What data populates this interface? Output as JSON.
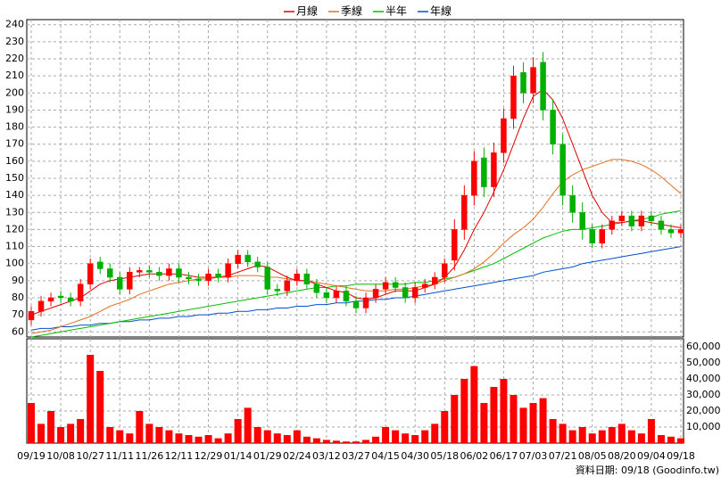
{
  "chart_data": {
    "type": "candlestick",
    "legend": [
      {
        "name": "月線",
        "color": "#e00000",
        "key": "ma20"
      },
      {
        "name": "季線",
        "color": "#e07020",
        "key": "ma60"
      },
      {
        "name": "半年",
        "color": "#00c000",
        "key": "ma120"
      },
      {
        "name": "年線",
        "color": "#0050d0",
        "key": "ma240"
      }
    ],
    "source": "資料日期: 09/18 (Goodinfo.tw)",
    "categories": [
      "09/19",
      null,
      null,
      "10/08",
      null,
      null,
      "10/27",
      null,
      null,
      "11/11",
      null,
      null,
      "11/26",
      null,
      null,
      "12/11",
      null,
      null,
      "12/29",
      null,
      null,
      "01/14",
      null,
      null,
      "01/29",
      null,
      null,
      "02/24",
      null,
      null,
      "03/12",
      null,
      null,
      "03/27",
      null,
      null,
      "04/15",
      null,
      null,
      "04/30",
      null,
      null,
      "05/18",
      null,
      null,
      "06/02",
      null,
      null,
      "06/17",
      null,
      null,
      "07/03",
      null,
      null,
      "07/21",
      null,
      null,
      "08/05",
      null,
      null,
      "08/20",
      null,
      null,
      "09/04",
      null,
      null,
      "09/18"
    ],
    "open": [
      67,
      72,
      78,
      81,
      80,
      78,
      88,
      101,
      97,
      92,
      85,
      95,
      96,
      95,
      93,
      97,
      92,
      91,
      90,
      94,
      92,
      100,
      105,
      101,
      98,
      85,
      84,
      90,
      94,
      88,
      83,
      80,
      84,
      78,
      74,
      80,
      85,
      89,
      86,
      80,
      86,
      88,
      92,
      102,
      120,
      140,
      162,
      145,
      165,
      185,
      212,
      200,
      218,
      190,
      170,
      140,
      130,
      120,
      112,
      120,
      125,
      128,
      122,
      128,
      125,
      120,
      118
    ],
    "high": [
      75,
      81,
      83,
      84,
      83,
      91,
      103,
      104,
      100,
      95,
      98,
      98,
      99,
      98,
      100,
      100,
      95,
      94,
      97,
      97,
      103,
      108,
      108,
      104,
      101,
      88,
      93,
      97,
      97,
      91,
      86,
      87,
      87,
      81,
      83,
      88,
      92,
      92,
      89,
      89,
      91,
      95,
      103,
      126,
      146,
      166,
      168,
      171,
      191,
      216,
      218,
      221,
      224,
      196,
      176,
      146,
      136,
      123,
      123,
      128,
      131,
      131,
      131,
      131,
      128,
      123,
      123
    ],
    "low": [
      64,
      69,
      75,
      77,
      75,
      75,
      85,
      94,
      89,
      82,
      82,
      92,
      92,
      90,
      90,
      89,
      88,
      87,
      87,
      89,
      89,
      97,
      98,
      95,
      82,
      81,
      81,
      87,
      85,
      80,
      77,
      77,
      75,
      71,
      71,
      77,
      82,
      83,
      77,
      77,
      83,
      85,
      89,
      96,
      114,
      134,
      139,
      139,
      159,
      179,
      194,
      194,
      184,
      164,
      134,
      124,
      114,
      109,
      109,
      117,
      122,
      119,
      119,
      122,
      117,
      115,
      115
    ],
    "close": [
      72,
      78,
      80,
      80,
      78,
      88,
      100,
      97,
      92,
      85,
      95,
      96,
      95,
      93,
      97,
      92,
      91,
      90,
      94,
      92,
      100,
      105,
      101,
      98,
      85,
      84,
      90,
      94,
      88,
      83,
      80,
      84,
      78,
      74,
      80,
      85,
      89,
      86,
      80,
      86,
      88,
      92,
      100,
      120,
      140,
      160,
      145,
      165,
      185,
      210,
      200,
      215,
      190,
      170,
      140,
      130,
      120,
      112,
      120,
      125,
      128,
      122,
      128,
      125,
      120,
      118,
      120
    ],
    "up_color": "#ff0000",
    "down_color": "#00b000",
    "volume": [
      25000,
      12000,
      20000,
      10000,
      12000,
      15000,
      55000,
      45000,
      10000,
      8000,
      6000,
      20000,
      12000,
      10000,
      8000,
      6000,
      5000,
      4000,
      5000,
      3000,
      6000,
      15000,
      22000,
      10000,
      8000,
      6000,
      5000,
      8000,
      4000,
      3000,
      2000,
      1500,
      1000,
      1000,
      2000,
      4000,
      10000,
      8000,
      6000,
      5000,
      8000,
      12000,
      20000,
      30000,
      40000,
      48000,
      25000,
      35000,
      40000,
      30000,
      22000,
      25000,
      28000,
      15000,
      12000,
      8000,
      10000,
      6000,
      8000,
      10000,
      12000,
      8000,
      6000,
      15000,
      5000,
      4000,
      3000
    ],
    "volume_color": "#ff0000",
    "ma20": [
      70,
      72,
      74,
      76,
      78,
      80,
      84,
      88,
      90,
      91,
      92,
      93,
      94,
      94,
      94,
      94,
      93,
      92,
      92,
      92,
      93,
      95,
      97,
      99,
      98,
      95,
      92,
      90,
      90,
      88,
      86,
      84,
      83,
      80,
      79,
      80,
      82,
      84,
      84,
      84,
      86,
      88,
      92,
      98,
      108,
      120,
      130,
      142,
      155,
      170,
      185,
      198,
      202,
      196,
      185,
      170,
      155,
      140,
      130,
      124,
      124,
      125,
      125,
      124,
      123,
      122,
      121
    ],
    "ma60": [
      59,
      60,
      61,
      63,
      65,
      67,
      69,
      72,
      75,
      77,
      79,
      82,
      84,
      86,
      88,
      89,
      90,
      91,
      91,
      92,
      92,
      93,
      93,
      93,
      92,
      92,
      91,
      90,
      90,
      89,
      88,
      87,
      86,
      85,
      84,
      84,
      84,
      85,
      85,
      86,
      87,
      88,
      90,
      92,
      94,
      97,
      101,
      106,
      112,
      117,
      121,
      126,
      133,
      141,
      148,
      152,
      155,
      157,
      159,
      161,
      161,
      160,
      158,
      155,
      151,
      146,
      141
    ],
    "ma120": [
      57,
      58,
      59,
      60,
      61,
      62,
      63,
      64,
      65,
      66,
      67,
      68,
      69,
      70,
      71,
      72,
      73,
      74,
      75,
      76,
      77,
      78,
      79,
      80,
      81,
      82,
      83,
      84,
      85,
      86,
      86,
      87,
      87,
      88,
      88,
      88,
      88,
      88,
      88,
      89,
      89,
      90,
      91,
      92,
      94,
      96,
      98,
      100,
      103,
      106,
      109,
      112,
      115,
      117,
      119,
      120,
      120,
      121,
      122,
      123,
      124,
      125,
      126,
      127,
      129,
      130,
      131
    ],
    "ma240": [
      61,
      62,
      62,
      63,
      63,
      64,
      64,
      65,
      65,
      66,
      66,
      67,
      67,
      68,
      68,
      69,
      69,
      70,
      70,
      71,
      71,
      72,
      72,
      73,
      73,
      74,
      74,
      75,
      75,
      76,
      76,
      77,
      77,
      78,
      78,
      79,
      79,
      80,
      80,
      81,
      82,
      83,
      84,
      85,
      86,
      87,
      88,
      89,
      90,
      91,
      92,
      93,
      95,
      96,
      97,
      98,
      100,
      101,
      102,
      103,
      104,
      105,
      106,
      107,
      108,
      109,
      110
    ],
    "ylim": [
      57,
      243
    ],
    "yticks": [
      60,
      70,
      80,
      90,
      100,
      110,
      120,
      130,
      140,
      150,
      160,
      170,
      180,
      190,
      200,
      210,
      220,
      230,
      240
    ],
    "y2lim": [
      0,
      65000
    ],
    "y2ticks": [
      {
        "value": 10000,
        "label": "10,000"
      },
      {
        "value": 20000,
        "label": "20,000"
      },
      {
        "value": 30000,
        "label": "30,000"
      },
      {
        "value": 40000,
        "label": "40,000"
      },
      {
        "value": 50000,
        "label": "50,000"
      },
      {
        "value": 60000,
        "label": "60,000"
      }
    ],
    "grid": true
  }
}
